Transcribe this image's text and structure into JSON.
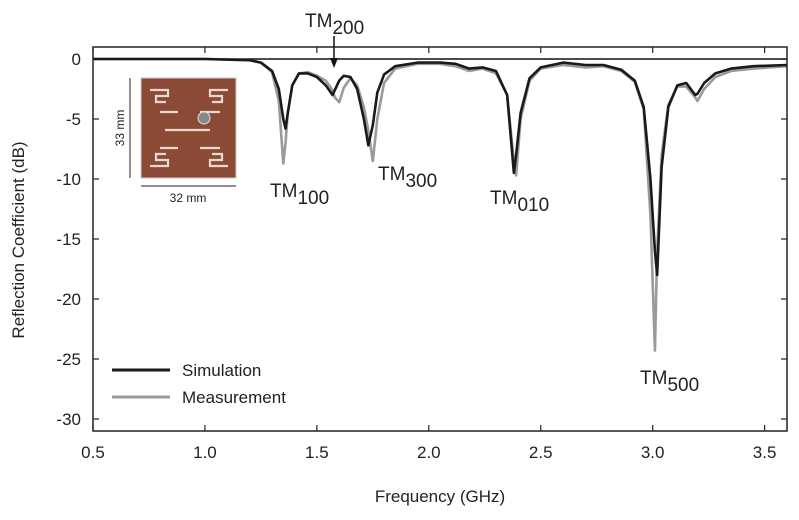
{
  "chart_data": {
    "type": "line",
    "x_label": "Frequency (GHz)",
    "y_label": "Reflection Coefficient (dB)",
    "x": [
      0.5,
      0.8,
      1.0,
      1.2,
      1.25,
      1.3,
      1.33,
      1.35,
      1.36,
      1.37,
      1.39,
      1.42,
      1.46,
      1.5,
      1.54,
      1.57,
      1.58,
      1.6,
      1.62,
      1.65,
      1.68,
      1.71,
      1.73,
      1.75,
      1.77,
      1.8,
      1.85,
      1.95,
      2.05,
      2.12,
      2.18,
      2.24,
      2.3,
      2.35,
      2.38,
      2.39,
      2.41,
      2.45,
      2.5,
      2.6,
      2.7,
      2.78,
      2.86,
      2.92,
      2.96,
      2.99,
      3.01,
      3.02,
      3.04,
      3.07,
      3.11,
      3.15,
      3.19,
      3.2,
      3.23,
      3.28,
      3.35,
      3.45,
      3.6
    ],
    "series": [
      {
        "name": "Simulation",
        "color": "#1a1a1a",
        "values": [
          0,
          0,
          0,
          -0.1,
          -0.3,
          -1,
          -2.5,
          -5,
          -5.8,
          -4.5,
          -2.2,
          -1.2,
          -1.2,
          -1.5,
          -2.2,
          -3,
          -2.6,
          -1.8,
          -1.4,
          -1.5,
          -2.5,
          -5,
          -7.2,
          -5.5,
          -2.8,
          -1.3,
          -0.6,
          -0.3,
          -0.3,
          -0.4,
          -0.8,
          -0.7,
          -1,
          -3,
          -9.5,
          -8,
          -4.5,
          -1.6,
          -0.7,
          -0.3,
          -0.5,
          -0.5,
          -0.9,
          -1.8,
          -4,
          -10,
          -16,
          -18,
          -9,
          -4,
          -2.2,
          -2,
          -3,
          -2.9,
          -2,
          -1.2,
          -0.8,
          -0.6,
          -0.5
        ]
      },
      {
        "name": "Measurement",
        "color": "#9a9a9a",
        "values": [
          0,
          0,
          0,
          -0.1,
          -0.3,
          -1.1,
          -3.5,
          -8.7,
          -7,
          -4.5,
          -2.2,
          -1.2,
          -1.1,
          -1.4,
          -1.8,
          -2.6,
          -3.2,
          -3.6,
          -2.4,
          -1.6,
          -2.2,
          -4,
          -6,
          -8.5,
          -5,
          -2,
          -0.8,
          -0.4,
          -0.4,
          -0.6,
          -1,
          -0.8,
          -1.2,
          -3,
          -8.5,
          -9.7,
          -5,
          -1.8,
          -0.8,
          -0.5,
          -0.7,
          -0.6,
          -1,
          -1.9,
          -4.2,
          -13,
          -24.3,
          -16,
          -8,
          -3.8,
          -2.3,
          -2.3,
          -3.2,
          -3.5,
          -2.5,
          -1.5,
          -1,
          -0.8,
          -0.6
        ]
      }
    ],
    "xlim": [
      0.5,
      3.6
    ],
    "ylim": [
      -31,
      1
    ],
    "xticks": [
      {
        "value": 0.5,
        "label": "0.5"
      },
      {
        "value": 1.0,
        "label": "1.0"
      },
      {
        "value": 1.5,
        "label": "1.5"
      },
      {
        "value": 2.0,
        "label": "2.0"
      },
      {
        "value": 2.5,
        "label": "2.5"
      },
      {
        "value": 3.0,
        "label": "3.0"
      },
      {
        "value": 3.5,
        "label": "3.5"
      }
    ],
    "yticks": [
      0,
      -5,
      -10,
      -15,
      -20,
      -25,
      -30
    ],
    "zero_line": true,
    "legend": "lower left",
    "annotations": [
      {
        "text": "TM",
        "subscript": "200"
      },
      {
        "text": "TM",
        "subscript": "100"
      },
      {
        "text": "TM",
        "subscript": "300"
      },
      {
        "text": "TM",
        "subscript": "010"
      },
      {
        "text": "TM",
        "subscript": "500"
      }
    ],
    "inset": {
      "height_label": "33 mm",
      "width_label": "32 mm"
    }
  }
}
